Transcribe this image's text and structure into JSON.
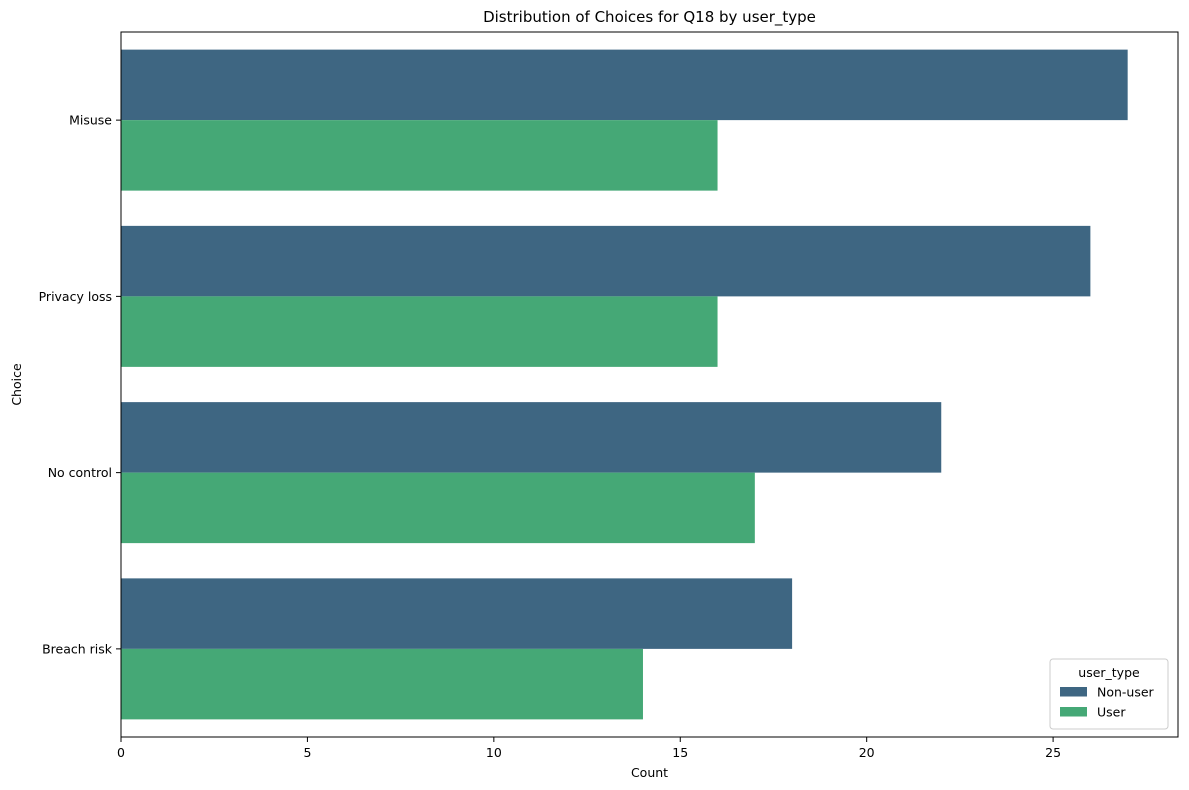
{
  "chart_data": {
    "type": "bar",
    "orientation": "horizontal",
    "title": "Distribution of Choices for Q18 by user_type",
    "xlabel": "Count",
    "ylabel": "Choice",
    "categories": [
      "Misuse",
      "Privacy loss",
      "No control",
      "Breach risk"
    ],
    "series": [
      {
        "name": "Non-user",
        "values": [
          27,
          26,
          22,
          18
        ],
        "color": "#3e6682"
      },
      {
        "name": "User",
        "values": [
          16,
          16,
          17,
          14
        ],
        "color": "#45a876"
      }
    ],
    "xlim": [
      0,
      28.35
    ],
    "xticks": [
      0,
      5,
      10,
      15,
      20,
      25
    ],
    "grid": false,
    "legend": {
      "title": "user_type",
      "position": "lower-right"
    }
  }
}
